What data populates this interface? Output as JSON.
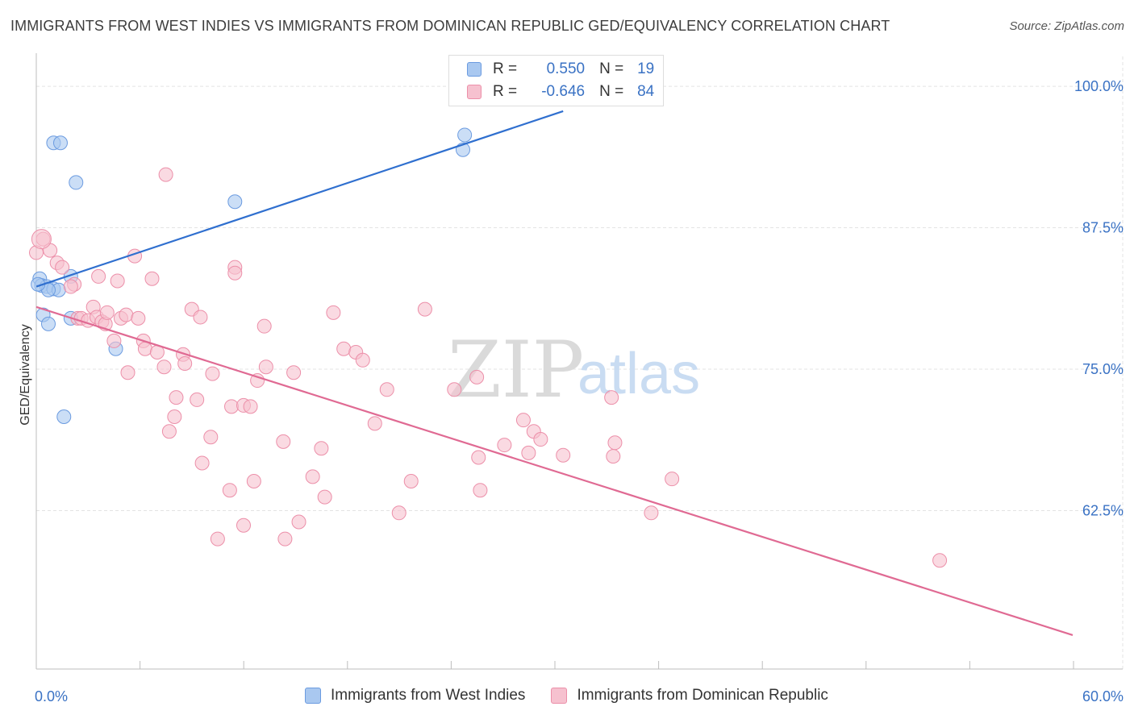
{
  "title": "IMMIGRANTS FROM WEST INDIES VS IMMIGRANTS FROM DOMINICAN REPUBLIC GED/EQUIVALENCY CORRELATION CHART",
  "source": "Source: ZipAtlas.com",
  "watermark": {
    "zip": "ZIP",
    "atlas": "atlas"
  },
  "legend": {
    "r_label": "R =",
    "n_label": "N =",
    "rows": [
      {
        "r": "0.550",
        "n": "19",
        "color": "#a9c8f0",
        "stroke": "#6b9be0"
      },
      {
        "r": "-0.646",
        "n": "84",
        "color": "#f6c1cf",
        "stroke": "#ec8fa9"
      }
    ]
  },
  "chart_data": {
    "type": "scatter",
    "title": "IMMIGRANTS FROM WEST INDIES VS IMMIGRANTS FROM DOMINICAN REPUBLIC GED/EQUIVALENCY CORRELATION CHART",
    "xlabel": "",
    "ylabel": "GED/Equivalency",
    "xlim": [
      0,
      60
    ],
    "ylim": [
      48.5,
      102.5
    ],
    "x_tick_labels": [
      {
        "value": 0,
        "label": "0.0%"
      },
      {
        "value": 60,
        "label": "60.0%"
      }
    ],
    "y_tick_labels": [
      {
        "value": 100,
        "label": "100.0%"
      },
      {
        "value": 87.5,
        "label": "87.5%"
      },
      {
        "value": 75,
        "label": "75.0%"
      },
      {
        "value": 62.5,
        "label": "62.5%"
      }
    ],
    "grid": true,
    "legend_position": "top-center",
    "series": [
      {
        "name": "Immigrants from West Indies",
        "color": "#a9c8f0",
        "stroke": "#6b9be0",
        "line_color": "#2f6fcf",
        "trend": {
          "x": [
            0,
            30.5
          ],
          "y": [
            82.3,
            97.8
          ]
        },
        "points": [
          {
            "x": 1.0,
            "y": 95.0
          },
          {
            "x": 1.4,
            "y": 95.0
          },
          {
            "x": 2.3,
            "y": 91.5
          },
          {
            "x": 11.5,
            "y": 89.8
          },
          {
            "x": 24.8,
            "y": 95.7
          },
          {
            "x": 24.7,
            "y": 94.4
          },
          {
            "x": 0.2,
            "y": 83.0
          },
          {
            "x": 0.3,
            "y": 82.4
          },
          {
            "x": 0.6,
            "y": 82.3
          },
          {
            "x": 1.0,
            "y": 82.1
          },
          {
            "x": 1.3,
            "y": 82.0
          },
          {
            "x": 0.7,
            "y": 82.0
          },
          {
            "x": 2.0,
            "y": 83.2
          },
          {
            "x": 0.4,
            "y": 79.8
          },
          {
            "x": 0.7,
            "y": 79.0
          },
          {
            "x": 2.0,
            "y": 79.5
          },
          {
            "x": 4.6,
            "y": 76.8
          },
          {
            "x": 1.6,
            "y": 70.8
          },
          {
            "x": 0.1,
            "y": 82.5
          }
        ]
      },
      {
        "name": "Immigrants from Dominican Republic",
        "color": "#f6c1cf",
        "stroke": "#ec8fa9",
        "line_color": "#e06a93",
        "trend": {
          "x": [
            0,
            60
          ],
          "y": [
            80.5,
            51.5
          ]
        },
        "points": [
          {
            "x": 0.4,
            "y": 86.5
          },
          {
            "x": 0.8,
            "y": 85.5
          },
          {
            "x": 1.2,
            "y": 84.4
          },
          {
            "x": 1.5,
            "y": 84.0
          },
          {
            "x": 2.2,
            "y": 82.5
          },
          {
            "x": 2.0,
            "y": 82.3
          },
          {
            "x": 7.5,
            "y": 92.2
          },
          {
            "x": 5.7,
            "y": 85.0
          },
          {
            "x": 3.6,
            "y": 83.2
          },
          {
            "x": 4.7,
            "y": 82.8
          },
          {
            "x": 6.7,
            "y": 83.0
          },
          {
            "x": 11.5,
            "y": 84.0
          },
          {
            "x": 11.5,
            "y": 83.5
          },
          {
            "x": 2.4,
            "y": 79.5
          },
          {
            "x": 2.6,
            "y": 79.5
          },
          {
            "x": 3.0,
            "y": 79.3
          },
          {
            "x": 3.3,
            "y": 80.5
          },
          {
            "x": 3.5,
            "y": 79.6
          },
          {
            "x": 3.8,
            "y": 79.2
          },
          {
            "x": 4.0,
            "y": 79.0
          },
          {
            "x": 4.1,
            "y": 80.0
          },
          {
            "x": 4.9,
            "y": 79.5
          },
          {
            "x": 5.2,
            "y": 79.8
          },
          {
            "x": 5.9,
            "y": 79.5
          },
          {
            "x": 9.0,
            "y": 80.3
          },
          {
            "x": 9.5,
            "y": 79.6
          },
          {
            "x": 13.2,
            "y": 78.8
          },
          {
            "x": 17.2,
            "y": 80.0
          },
          {
            "x": 22.5,
            "y": 80.3
          },
          {
            "x": 4.5,
            "y": 77.5
          },
          {
            "x": 6.2,
            "y": 77.5
          },
          {
            "x": 6.3,
            "y": 76.8
          },
          {
            "x": 7.0,
            "y": 76.5
          },
          {
            "x": 8.5,
            "y": 76.3
          },
          {
            "x": 8.6,
            "y": 75.5
          },
          {
            "x": 17.8,
            "y": 76.8
          },
          {
            "x": 18.5,
            "y": 76.5
          },
          {
            "x": 18.9,
            "y": 75.8
          },
          {
            "x": 5.3,
            "y": 74.7
          },
          {
            "x": 7.4,
            "y": 75.2
          },
          {
            "x": 10.2,
            "y": 74.6
          },
          {
            "x": 13.3,
            "y": 75.2
          },
          {
            "x": 14.9,
            "y": 74.7
          },
          {
            "x": 12.8,
            "y": 74.0
          },
          {
            "x": 25.5,
            "y": 74.3
          },
          {
            "x": 20.3,
            "y": 73.2
          },
          {
            "x": 24.2,
            "y": 73.2
          },
          {
            "x": 33.3,
            "y": 72.5
          },
          {
            "x": 8.1,
            "y": 72.5
          },
          {
            "x": 9.3,
            "y": 72.3
          },
          {
            "x": 11.3,
            "y": 71.7
          },
          {
            "x": 12.0,
            "y": 71.8
          },
          {
            "x": 12.4,
            "y": 71.7
          },
          {
            "x": 8.0,
            "y": 70.8
          },
          {
            "x": 7.7,
            "y": 69.5
          },
          {
            "x": 10.1,
            "y": 69.0
          },
          {
            "x": 14.3,
            "y": 68.6
          },
          {
            "x": 16.5,
            "y": 68.0
          },
          {
            "x": 19.6,
            "y": 70.2
          },
          {
            "x": 28.2,
            "y": 70.5
          },
          {
            "x": 28.8,
            "y": 69.5
          },
          {
            "x": 29.2,
            "y": 68.8
          },
          {
            "x": 27.1,
            "y": 68.3
          },
          {
            "x": 28.5,
            "y": 67.6
          },
          {
            "x": 30.5,
            "y": 67.4
          },
          {
            "x": 33.5,
            "y": 68.5
          },
          {
            "x": 33.4,
            "y": 67.3
          },
          {
            "x": 25.6,
            "y": 67.2
          },
          {
            "x": 9.6,
            "y": 66.7
          },
          {
            "x": 16.0,
            "y": 65.5
          },
          {
            "x": 12.6,
            "y": 65.1
          },
          {
            "x": 11.2,
            "y": 64.3
          },
          {
            "x": 21.7,
            "y": 65.1
          },
          {
            "x": 25.7,
            "y": 64.3
          },
          {
            "x": 16.7,
            "y": 63.7
          },
          {
            "x": 36.8,
            "y": 65.3
          },
          {
            "x": 21.0,
            "y": 62.3
          },
          {
            "x": 35.6,
            "y": 62.3
          },
          {
            "x": 15.2,
            "y": 61.5
          },
          {
            "x": 12.0,
            "y": 61.2
          },
          {
            "x": 10.5,
            "y": 60.0
          },
          {
            "x": 14.4,
            "y": 60.0
          },
          {
            "x": 52.3,
            "y": 58.1
          },
          {
            "x": 0.0,
            "y": 85.3
          }
        ]
      }
    ]
  }
}
